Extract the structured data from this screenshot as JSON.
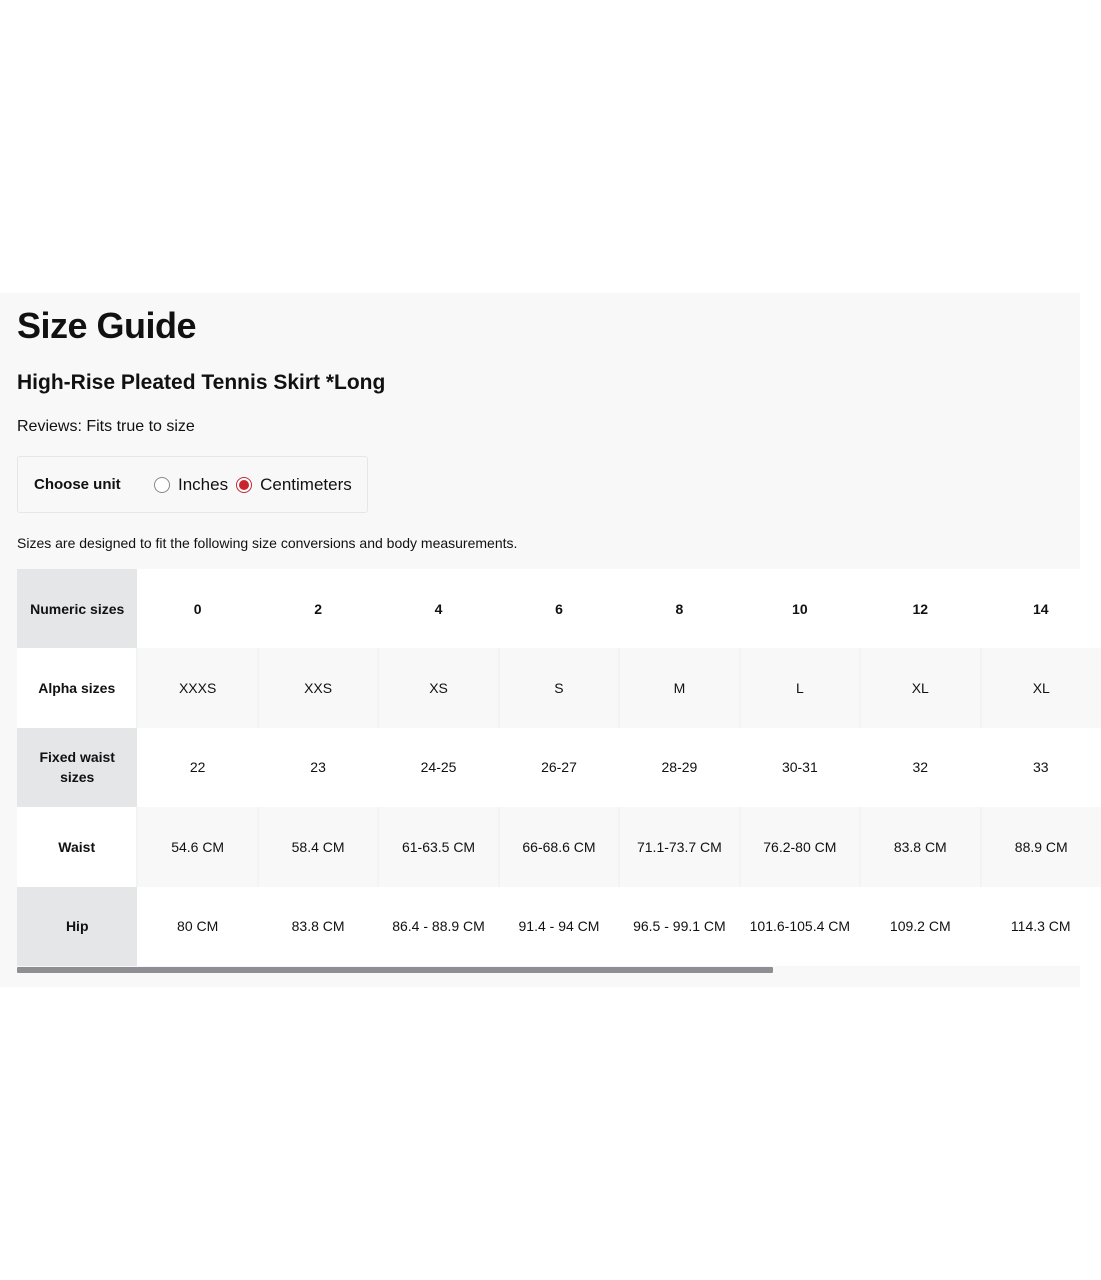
{
  "title": "Size Guide",
  "product": "High-Rise Pleated Tennis Skirt *Long",
  "reviews": "Reviews: Fits true to size",
  "unit": {
    "label": "Choose unit",
    "options": [
      "Inches",
      "Centimeters"
    ],
    "selected": "Centimeters"
  },
  "note": "Sizes are designed to fit the following size conversions and body measurements.",
  "colors": {
    "accent": "#c8262f",
    "label_bg": "#e5e6e8",
    "scrollbar": "#8e8e93"
  },
  "scroll_position_percent": 0,
  "table": {
    "rows": [
      {
        "label": "Numeric sizes",
        "values": [
          "0",
          "2",
          "4",
          "6",
          "8",
          "10",
          "12",
          "14"
        ]
      },
      {
        "label": "Alpha sizes",
        "values": [
          "XXXS",
          "XXS",
          "XS",
          "S",
          "M",
          "L",
          "XL",
          "XL"
        ]
      },
      {
        "label": "Fixed waist sizes",
        "values": [
          "22",
          "23",
          "24-25",
          "26-27",
          "28-29",
          "30-31",
          "32",
          "33"
        ]
      },
      {
        "label": "Waist",
        "values": [
          "54.6 CM",
          "58.4 CM",
          "61-63.5 CM",
          "66-68.6 CM",
          "71.1-73.7 CM",
          "76.2-80 CM",
          "83.8 CM",
          "88.9 CM"
        ]
      },
      {
        "label": "Hip",
        "values": [
          "80 CM",
          "83.8 CM",
          "86.4 - 88.9 CM",
          "91.4 - 94 CM",
          "96.5 - 99.1 CM",
          "101.6-105.4 CM",
          "109.2 CM",
          "114.3 CM"
        ]
      }
    ]
  }
}
